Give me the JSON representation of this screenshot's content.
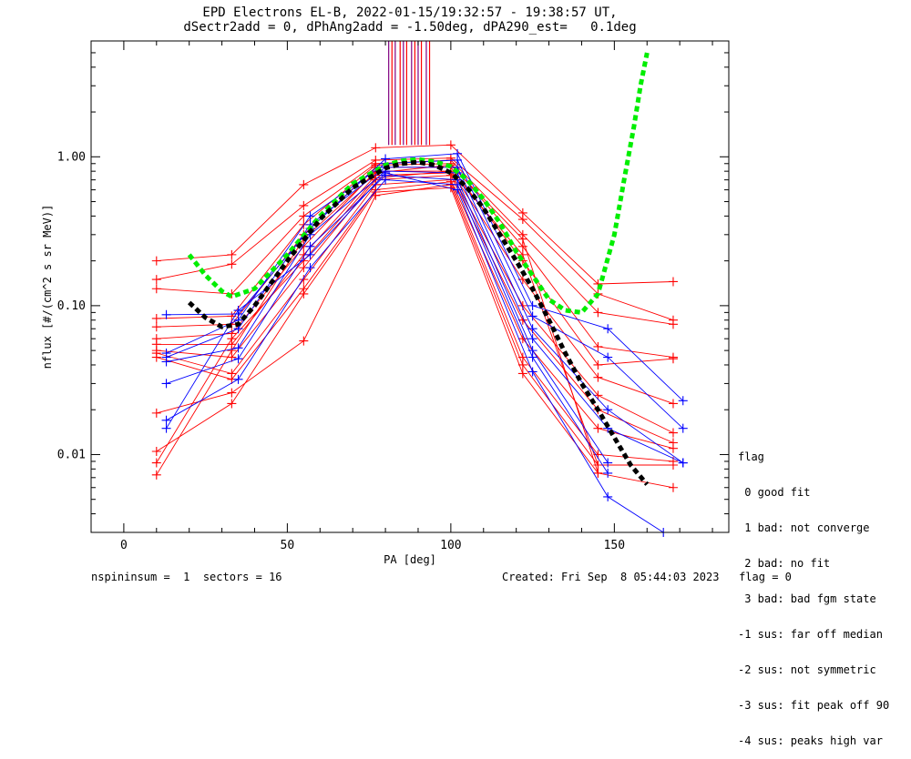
{
  "title_line1": "EPD Electrons EL-B, 2022-01-15/19:32:57 - 19:38:57 UT,",
  "title_line2": "dSectr2add = 0, dPhAng2add = -1.50deg, dPA290_est=   0.1deg",
  "footer": {
    "left": "nspininsum =  1  sectors = 16",
    "right": "Created: Fri Sep  8 05:44:03 2023   flag = 0"
  },
  "legend": {
    "title": "flag",
    "items": [
      " 0 good fit",
      " 1 bad: not converge",
      " 2 bad: no fit",
      " 3 bad: bad fgm state",
      "-1 sus: far off median",
      "-2 sus: not symmetric",
      "-3 sus: fit peak off 90",
      "-4 sus: peaks high var"
    ]
  },
  "colors": {
    "red": "#ff0000",
    "blue": "#0000ff",
    "green": "#00ee00",
    "black": "#000000",
    "purple": "#800080"
  },
  "chart_data": {
    "type": "line",
    "xlabel": "PA [deg]",
    "ylabel": "nflux [#/(cm^2 s sr MeV)]",
    "xlim": [
      -10,
      185
    ],
    "ylim": [
      0.003,
      6
    ],
    "yscale": "log",
    "xticks": [
      0,
      50,
      100,
      150
    ],
    "xtick_labels": [
      "0",
      "50",
      "100",
      "150"
    ],
    "yticks": [
      0.01,
      0.1,
      1.0
    ],
    "ytick_labels": [
      "0.01",
      "0.10",
      "1.00"
    ],
    "sector_lines_x": [
      81,
      82,
      83,
      84.5,
      85.5,
      86.5,
      88,
      89,
      90,
      91,
      92.5,
      93.5
    ],
    "red_series": [
      {
        "x": [
          10,
          33,
          55,
          77,
          100,
          122,
          145,
          168
        ],
        "y": [
          0.2,
          0.22,
          0.65,
          1.15,
          1.2,
          0.42,
          0.14,
          0.145
        ]
      },
      {
        "x": [
          10,
          33,
          55,
          77,
          100,
          122,
          145,
          168
        ],
        "y": [
          0.15,
          0.19,
          0.47,
          0.95,
          0.98,
          0.38,
          0.12,
          0.08
        ]
      },
      {
        "x": [
          10,
          33,
          55,
          77,
          100,
          122,
          145,
          168
        ],
        "y": [
          0.13,
          0.12,
          0.4,
          0.9,
          0.95,
          0.3,
          0.09,
          0.075
        ]
      },
      {
        "x": [
          10,
          33,
          55,
          77,
          100,
          122,
          145,
          168
        ],
        "y": [
          0.082,
          0.085,
          0.35,
          0.88,
          0.9,
          0.25,
          0.053,
          0.045
        ]
      },
      {
        "x": [
          10,
          33,
          55,
          77,
          100,
          122,
          145,
          168
        ],
        "y": [
          0.072,
          0.075,
          0.3,
          0.85,
          0.85,
          0.2,
          0.04,
          0.044
        ]
      },
      {
        "x": [
          10,
          33,
          55,
          77,
          100,
          122,
          145,
          168
        ],
        "y": [
          0.06,
          0.065,
          0.25,
          0.8,
          0.8,
          0.15,
          0.033,
          0.022
        ]
      },
      {
        "x": [
          10,
          33,
          55,
          77,
          100,
          122,
          145,
          168
        ],
        "y": [
          0.055,
          0.055,
          0.22,
          0.75,
          0.78,
          0.1,
          0.025,
          0.014
        ]
      },
      {
        "x": [
          10,
          33,
          55,
          77,
          100,
          122,
          145,
          168
        ],
        "y": [
          0.05,
          0.045,
          0.18,
          0.7,
          0.75,
          0.08,
          0.02,
          0.012
        ]
      },
      {
        "x": [
          10,
          33,
          55,
          77,
          100,
          122,
          145,
          168
        ],
        "y": [
          0.048,
          0.035,
          0.15,
          0.65,
          0.7,
          0.06,
          0.015,
          0.011
        ]
      },
      {
        "x": [
          10,
          33,
          55,
          77,
          100,
          122,
          145,
          168
        ],
        "y": [
          0.045,
          0.032,
          0.13,
          0.6,
          0.68,
          0.045,
          0.01,
          0.009
        ]
      },
      {
        "x": [
          10,
          33,
          55,
          77,
          100,
          122,
          145,
          168
        ],
        "y": [
          0.019,
          0.026,
          0.058,
          0.55,
          0.65,
          0.04,
          0.0085,
          0.0085
        ]
      },
      {
        "x": [
          10,
          33,
          55,
          77,
          100,
          122,
          145,
          168
        ],
        "y": [
          0.0105,
          0.022,
          0.12,
          0.58,
          0.62,
          0.035,
          0.0075,
          0.006
        ]
      },
      {
        "x": [
          10,
          33,
          55,
          77,
          100,
          122,
          145
        ],
        "y": [
          0.0088,
          0.06,
          0.2,
          0.72,
          0.8,
          0.22,
          0.0085
        ]
      },
      {
        "x": [
          10,
          33,
          55,
          77,
          100,
          122,
          145
        ],
        "y": [
          0.0073,
          0.05,
          0.28,
          0.78,
          0.88,
          0.28,
          0.0075
        ]
      }
    ],
    "blue_series": [
      {
        "x": [
          13,
          35,
          57,
          80,
          102,
          125,
          148,
          171
        ],
        "y": [
          0.087,
          0.088,
          0.33,
          0.97,
          1.05,
          0.1,
          0.07,
          0.023
        ]
      },
      {
        "x": [
          13,
          35,
          57,
          80,
          102,
          125,
          148,
          171
        ],
        "y": [
          0.048,
          0.08,
          0.4,
          0.9,
          0.95,
          0.085,
          0.045,
          0.015
        ]
      },
      {
        "x": [
          13,
          35,
          57,
          80,
          102,
          125,
          148,
          171
        ],
        "y": [
          0.045,
          0.07,
          0.35,
          0.85,
          0.85,
          0.07,
          0.02,
          0.0088
        ]
      },
      {
        "x": [
          13,
          35,
          57,
          80,
          102,
          125,
          148,
          171
        ],
        "y": [
          0.042,
          0.052,
          0.3,
          0.8,
          0.78,
          0.06,
          0.015,
          0.0088
        ]
      },
      {
        "x": [
          13,
          35,
          57,
          80,
          102,
          125,
          148
        ],
        "y": [
          0.03,
          0.044,
          0.25,
          0.75,
          0.7,
          0.05,
          0.0088
        ]
      },
      {
        "x": [
          13,
          35,
          57,
          80,
          102,
          125,
          148
        ],
        "y": [
          0.017,
          0.032,
          0.18,
          0.7,
          0.65,
          0.045,
          0.0075
        ]
      },
      {
        "x": [
          13,
          35,
          57,
          80,
          102,
          125,
          148,
          165
        ],
        "y": [
          0.015,
          0.093,
          0.22,
          0.78,
          0.6,
          0.036,
          0.0052,
          0.003
        ]
      }
    ],
    "green_fit": {
      "x": [
        20,
        25,
        30,
        33,
        40,
        50,
        60,
        70,
        80,
        85,
        90,
        95,
        100,
        105,
        110,
        115,
        120,
        125,
        130,
        135,
        140,
        145,
        150,
        153,
        156,
        158,
        160
      ],
      "y": [
        0.22,
        0.16,
        0.125,
        0.115,
        0.13,
        0.22,
        0.4,
        0.66,
        0.88,
        0.94,
        0.96,
        0.93,
        0.86,
        0.7,
        0.52,
        0.36,
        0.23,
        0.16,
        0.11,
        0.093,
        0.09,
        0.12,
        0.3,
        0.7,
        1.6,
        3.0,
        5.0
      ]
    },
    "black_fit": {
      "x": [
        20,
        25,
        30,
        35,
        40,
        50,
        60,
        70,
        80,
        85,
        90,
        95,
        100,
        105,
        110,
        115,
        120,
        125,
        130,
        135,
        140,
        145,
        150,
        155,
        160
      ],
      "y": [
        0.105,
        0.083,
        0.072,
        0.075,
        0.1,
        0.2,
        0.38,
        0.62,
        0.84,
        0.9,
        0.92,
        0.88,
        0.78,
        0.62,
        0.45,
        0.3,
        0.2,
        0.13,
        0.08,
        0.048,
        0.03,
        0.02,
        0.013,
        0.0085,
        0.0063
      ]
    }
  }
}
